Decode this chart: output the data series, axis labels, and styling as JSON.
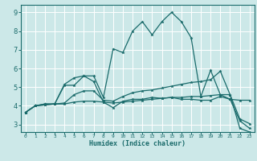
{
  "xlabel": "Humidex (Indice chaleur)",
  "bg_color": "#cce8e8",
  "line_color": "#1a6b6b",
  "grid_color": "#ffffff",
  "xlim": [
    -0.5,
    23.5
  ],
  "ylim": [
    2.6,
    9.4
  ],
  "xticks": [
    0,
    1,
    2,
    3,
    4,
    5,
    6,
    7,
    8,
    9,
    10,
    11,
    12,
    13,
    14,
    15,
    16,
    17,
    18,
    19,
    20,
    21,
    22,
    23
  ],
  "yticks": [
    3,
    4,
    5,
    6,
    7,
    8,
    9
  ],
  "lines": [
    {
      "x": [
        0,
        1,
        2,
        3,
        4,
        5,
        6,
        7,
        8,
        9,
        10,
        11,
        12,
        13,
        14,
        15,
        16,
        17,
        18,
        19,
        20,
        21,
        22,
        23
      ],
      "y": [
        3.65,
        4.0,
        4.1,
        4.1,
        5.15,
        5.5,
        5.6,
        5.3,
        4.2,
        3.9,
        4.25,
        4.35,
        4.35,
        4.45,
        4.4,
        4.45,
        4.35,
        4.35,
        4.3,
        4.3,
        4.5,
        4.35,
        4.3,
        4.3
      ]
    },
    {
      "x": [
        0,
        1,
        2,
        3,
        4,
        5,
        6,
        7,
        8,
        9,
        10,
        11,
        12,
        13,
        14,
        15,
        16,
        17,
        18,
        19,
        20,
        21,
        22,
        23
      ],
      "y": [
        3.65,
        4.0,
        4.1,
        4.1,
        5.1,
        5.1,
        5.6,
        5.6,
        4.45,
        7.05,
        6.85,
        8.0,
        8.5,
        7.8,
        8.5,
        9.0,
        8.5,
        7.65,
        4.5,
        5.9,
        4.6,
        4.6,
        2.8,
        2.6
      ]
    },
    {
      "x": [
        0,
        1,
        2,
        3,
        4,
        5,
        6,
        7,
        8,
        9,
        10,
        11,
        12,
        13,
        14,
        15,
        16,
        17,
        18,
        19,
        20,
        21,
        22,
        23
      ],
      "y": [
        3.65,
        4.0,
        4.05,
        4.1,
        4.15,
        4.6,
        4.8,
        4.8,
        4.3,
        4.25,
        4.5,
        4.7,
        4.8,
        4.85,
        4.95,
        5.05,
        5.15,
        5.25,
        5.3,
        5.4,
        5.85,
        4.6,
        3.3,
        3.05
      ]
    },
    {
      "x": [
        0,
        1,
        2,
        3,
        4,
        5,
        6,
        7,
        8,
        9,
        10,
        11,
        12,
        13,
        14,
        15,
        16,
        17,
        18,
        19,
        20,
        21,
        22,
        23
      ],
      "y": [
        3.65,
        4.0,
        4.05,
        4.1,
        4.1,
        4.2,
        4.25,
        4.25,
        4.2,
        4.15,
        4.2,
        4.25,
        4.3,
        4.35,
        4.4,
        4.45,
        4.45,
        4.5,
        4.5,
        4.55,
        4.6,
        4.35,
        3.2,
        2.8
      ]
    }
  ]
}
